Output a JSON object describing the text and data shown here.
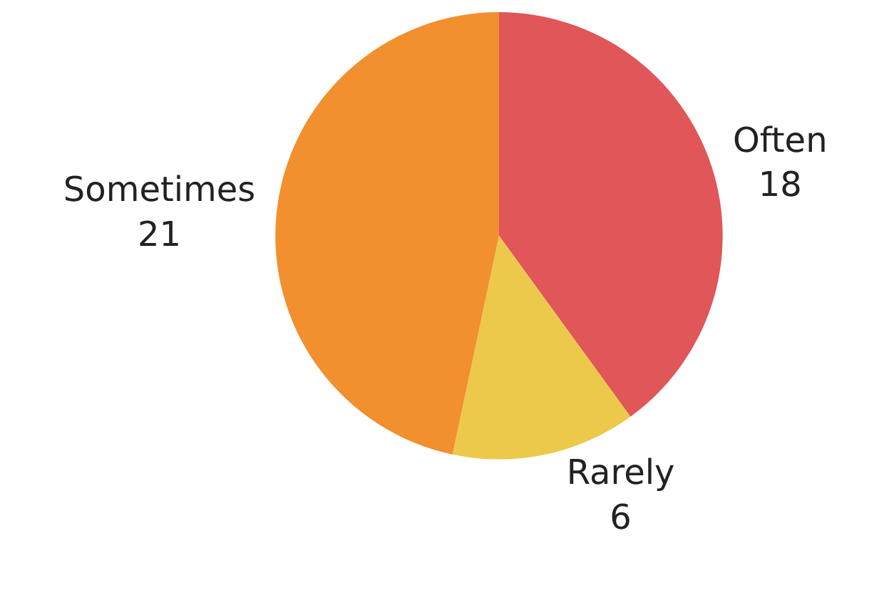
{
  "chart_data": {
    "type": "pie",
    "categories": [
      "Often",
      "Rarely",
      "Sometimes"
    ],
    "values": [
      18,
      6,
      21
    ],
    "colors": [
      "#e05659",
      "#ecc94b",
      "#f28f2e"
    ],
    "data_labels": true,
    "legend": false
  }
}
